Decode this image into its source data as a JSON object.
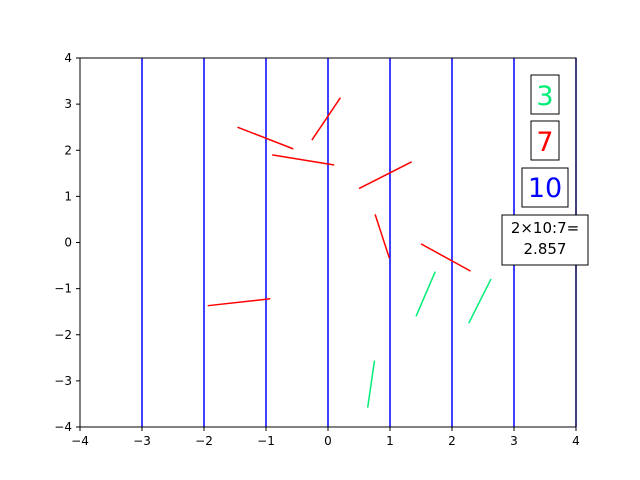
{
  "colors": {
    "lines": "#0000ff",
    "crossing": "#00ee77",
    "noncrossing": "#ff0000",
    "frame": "#000000"
  },
  "chart_data": {
    "type": "line",
    "xlim": [
      -4,
      4
    ],
    "ylim": [
      -4,
      4
    ],
    "xticks": [
      "−4",
      "−3",
      "−2",
      "−1",
      "0",
      "1",
      "2",
      "3",
      "4"
    ],
    "yticks": [
      "−4",
      "−3",
      "−2",
      "−1",
      "0",
      "1",
      "2",
      "3",
      "4"
    ],
    "grid": false,
    "vertical_lines_x": [
      -3,
      -2,
      -1,
      0,
      1,
      2,
      3,
      4
    ],
    "needles_crossing": [
      {
        "x1": 1.42,
        "y1": -1.6,
        "x2": 1.73,
        "y2": -0.63
      },
      {
        "x1": 2.27,
        "y1": -1.75,
        "x2": 2.63,
        "y2": -0.79
      },
      {
        "x1": 0.64,
        "y1": -3.58,
        "x2": 0.75,
        "y2": -2.56
      }
    ],
    "needles_noncrossing": [
      {
        "x1": -1.46,
        "y1": 2.5,
        "x2": -0.56,
        "y2": 2.03
      },
      {
        "x1": -0.26,
        "y1": 2.22,
        "x2": 0.2,
        "y2": 3.14
      },
      {
        "x1": -0.9,
        "y1": 1.9,
        "x2": 0.1,
        "y2": 1.68
      },
      {
        "x1": 0.5,
        "y1": 1.17,
        "x2": 1.35,
        "y2": 1.75
      },
      {
        "x1": 0.76,
        "y1": 0.61,
        "x2": 0.99,
        "y2": -0.34
      },
      {
        "x1": 1.5,
        "y1": -0.03,
        "x2": 2.3,
        "y2": -0.62
      },
      {
        "x1": -1.94,
        "y1": -1.37,
        "x2": -0.93,
        "y2": -1.22
      }
    ],
    "counter_labels": [
      {
        "text": "3",
        "color": "#00ee77"
      },
      {
        "text": "7",
        "color": "#ff0000"
      },
      {
        "text": "10",
        "color": "#0000ff"
      }
    ],
    "estimate_label": [
      "2×10:7=",
      "2.857"
    ]
  }
}
